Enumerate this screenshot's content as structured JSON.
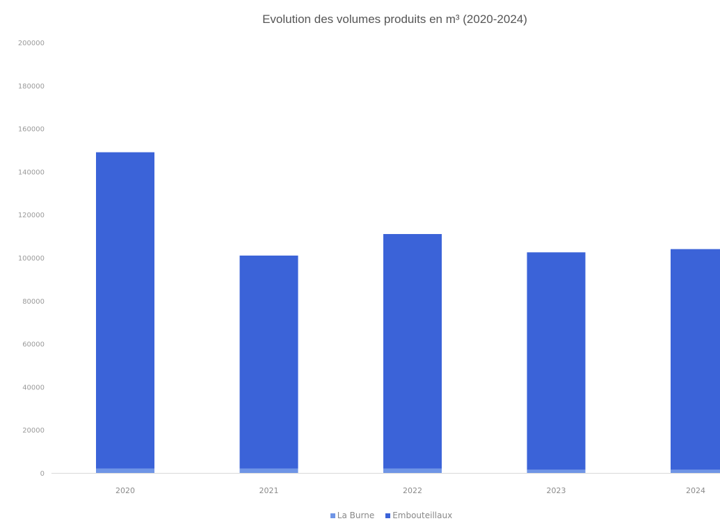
{
  "chart_data": {
    "type": "bar",
    "stacked": true,
    "title": "Evolution des volumes produits en m³ (2020-2024)",
    "xlabel": "",
    "ylabel": "",
    "categories": [
      "2020",
      "2021",
      "2022",
      "2023",
      "2024"
    ],
    "yticks": [
      "0",
      "20000",
      "40000",
      "60000",
      "80000",
      "100000",
      "120000",
      "140000",
      "160000",
      "180000",
      "200000"
    ],
    "ylim": [
      0,
      200000
    ],
    "grid": false,
    "legend_position": "bottom",
    "series": [
      {
        "name": "La Burne",
        "color": "#6f95e6",
        "values": [
          2000,
          2000,
          2000,
          1500,
          1500
        ]
      },
      {
        "name": "Embouteillaux",
        "color": "#3b63d8",
        "values": [
          147000,
          99000,
          109000,
          101000,
          102500
        ]
      }
    ]
  }
}
